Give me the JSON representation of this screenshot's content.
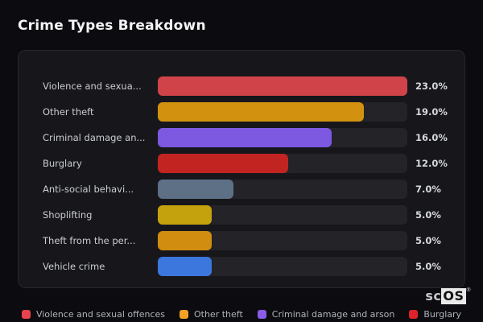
{
  "title": "Crime Types Breakdown",
  "chart_data": {
    "type": "bar",
    "orientation": "horizontal",
    "title": "Crime Types Breakdown",
    "categories": [
      "Violence and sexua...",
      "Other theft",
      "Criminal damage an...",
      "Burglary",
      "Anti-social behavi...",
      "Shoplifting",
      "Theft from the per...",
      "Vehicle crime"
    ],
    "values": [
      23.0,
      19.0,
      16.0,
      12.0,
      7.0,
      5.0,
      5.0,
      5.0
    ],
    "value_labels": [
      "23.0%",
      "19.0%",
      "16.0%",
      "12.0%",
      "7.0%",
      "5.0%",
      "5.0%",
      "5.0%"
    ],
    "bar_colors": [
      "#d04449",
      "#d2920f",
      "#7d58e0",
      "#c22421",
      "#5d7086",
      "#c4a20d",
      "#d18d10",
      "#3b77dd"
    ],
    "xlim": [
      0,
      23
    ],
    "grid": false,
    "legend_position": "bottom"
  },
  "legend": {
    "items": [
      {
        "label": "Violence and sexual offences",
        "color": "#e8434d"
      },
      {
        "label": "Other theft",
        "color": "#f2a126"
      },
      {
        "label": "Criminal damage and arson",
        "color": "#8a5ce8"
      },
      {
        "label": "Burglary",
        "color": "#e0222a"
      }
    ]
  },
  "logo": {
    "prefix": "sc",
    "boxed": "OS",
    "mark": "®"
  },
  "colors": {
    "page_background": "#0c0c10",
    "card_background": "#17171b",
    "card_border": "#27272c",
    "bar_track": "#232328",
    "title_text": "#f4f4f6",
    "label_text": "#c9cdd3",
    "value_text": "#d5d8dc",
    "legend_text": "#aeb2b9"
  }
}
